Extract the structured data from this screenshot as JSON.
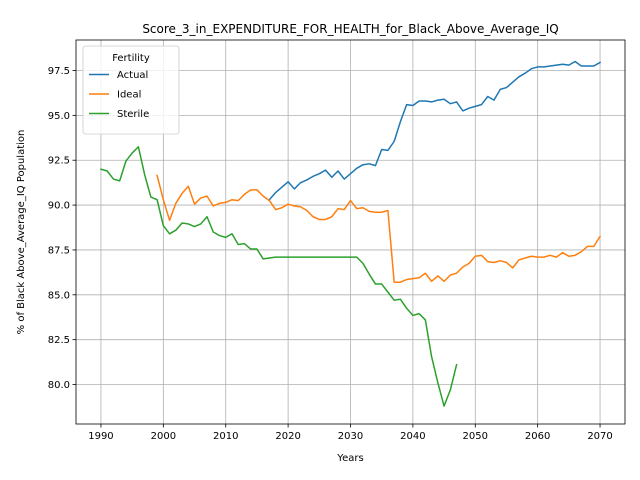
{
  "chart_data": {
    "type": "line",
    "title": "Score_3_in_EXPENDITURE_FOR_HEALTH_for_Black_Above_Average_IQ",
    "xlabel": "Years",
    "ylabel": "% of Black Above_Average_IQ Population",
    "xlim": [
      1986,
      2074
    ],
    "ylim": [
      77.8,
      99.2
    ],
    "xticks": [
      1990,
      2000,
      2010,
      2020,
      2030,
      2040,
      2050,
      2060,
      2070
    ],
    "yticks": [
      80.0,
      82.5,
      85.0,
      87.5,
      90.0,
      92.5,
      95.0,
      97.5
    ],
    "xtick_labels": [
      "1990",
      "2000",
      "2010",
      "2020",
      "2030",
      "2040",
      "2050",
      "2060",
      "2070"
    ],
    "ytick_labels": [
      "80.0",
      "82.5",
      "85.0",
      "87.5",
      "90.0",
      "92.5",
      "95.0",
      "97.5"
    ],
    "grid": true,
    "legend": {
      "title": "Fertility",
      "position": "upper-left"
    },
    "series": [
      {
        "name": "Actual",
        "color": "#1f77b4",
        "x": [
          2017,
          2018,
          2019,
          2020,
          2021,
          2022,
          2023,
          2024,
          2025,
          2026,
          2027,
          2028,
          2029,
          2030,
          2031,
          2032,
          2033,
          2034,
          2035,
          2036,
          2037,
          2038,
          2039,
          2040,
          2041,
          2042,
          2043,
          2044,
          2045,
          2046,
          2047,
          2048,
          2049,
          2050,
          2051,
          2052,
          2053,
          2054,
          2055,
          2056,
          2057,
          2058,
          2059,
          2060,
          2061,
          2062,
          2063,
          2064,
          2065,
          2066,
          2067,
          2068,
          2069,
          2070
        ],
        "y": [
          90.3,
          90.7,
          91.0,
          91.3,
          90.9,
          91.25,
          91.4,
          91.6,
          91.75,
          91.95,
          91.55,
          91.9,
          91.45,
          91.75,
          92.05,
          92.25,
          92.3,
          92.2,
          93.1,
          93.05,
          93.55,
          94.65,
          95.6,
          95.55,
          95.8,
          95.8,
          95.75,
          95.85,
          95.9,
          95.65,
          95.75,
          95.25,
          95.4,
          95.5,
          95.6,
          96.05,
          95.85,
          96.45,
          96.55,
          96.85,
          97.15,
          97.35,
          97.6,
          97.7,
          97.7,
          97.75,
          97.8,
          97.85,
          97.8,
          98.0,
          97.75,
          97.75,
          97.75,
          97.95
        ]
      },
      {
        "name": "Ideal",
        "color": "#ff7f0e",
        "x": [
          1999,
          2000,
          2001,
          2002,
          2003,
          2004,
          2005,
          2006,
          2007,
          2008,
          2009,
          2010,
          2011,
          2012,
          2013,
          2014,
          2015,
          2016,
          2017,
          2018,
          2019,
          2020,
          2021,
          2022,
          2023,
          2024,
          2025,
          2026,
          2027,
          2028,
          2029,
          2030,
          2031,
          2032,
          2033,
          2034,
          2035,
          2036,
          2037,
          2038,
          2039,
          2040,
          2041,
          2042,
          2043,
          2044,
          2045,
          2046,
          2047,
          2048,
          2049,
          2050,
          2051,
          2052,
          2053,
          2054,
          2055,
          2056,
          2057,
          2058,
          2059,
          2060,
          2061,
          2062,
          2063,
          2064,
          2065,
          2066,
          2067,
          2068,
          2069,
          2070
        ],
        "y": [
          91.65,
          90.3,
          89.15,
          90.1,
          90.65,
          91.05,
          90.05,
          90.4,
          90.5,
          89.95,
          90.1,
          90.15,
          90.3,
          90.25,
          90.6,
          90.85,
          90.85,
          90.5,
          90.25,
          89.75,
          89.85,
          90.05,
          89.95,
          89.9,
          89.7,
          89.35,
          89.2,
          89.2,
          89.35,
          89.8,
          89.75,
          90.25,
          89.8,
          89.85,
          89.65,
          89.6,
          89.6,
          89.7,
          85.7,
          85.7,
          85.85,
          85.9,
          85.95,
          86.2,
          85.75,
          86.05,
          85.75,
          86.1,
          86.2,
          86.55,
          86.75,
          87.15,
          87.2,
          86.85,
          86.8,
          86.9,
          86.8,
          86.5,
          86.95,
          87.05,
          87.15,
          87.1,
          87.1,
          87.2,
          87.1,
          87.35,
          87.15,
          87.2,
          87.4,
          87.7,
          87.7,
          88.25
        ]
      },
      {
        "name": "Sterile",
        "color": "#2ca02c",
        "x": [
          1990,
          1991,
          1992,
          1993,
          1994,
          1995,
          1996,
          1997,
          1998,
          1999,
          2000,
          2001,
          2002,
          2003,
          2004,
          2005,
          2006,
          2007,
          2008,
          2009,
          2010,
          2011,
          2012,
          2013,
          2014,
          2015,
          2016,
          2017,
          2018,
          2019,
          2020,
          2021,
          2022,
          2023,
          2024,
          2025,
          2026,
          2027,
          2028,
          2029,
          2030,
          2031,
          2032,
          2033,
          2034,
          2035,
          2036,
          2037,
          2038,
          2039,
          2040,
          2041,
          2042,
          2043,
          2044,
          2045,
          2046,
          2047
        ],
        "y": [
          92.0,
          91.9,
          91.45,
          91.35,
          92.45,
          92.9,
          93.25,
          91.7,
          90.45,
          90.3,
          88.85,
          88.4,
          88.6,
          89.0,
          88.95,
          88.8,
          88.95,
          89.35,
          88.5,
          88.3,
          88.2,
          88.4,
          87.8,
          87.85,
          87.55,
          87.55,
          87.0,
          87.05,
          87.1,
          87.1,
          87.1,
          87.1,
          87.1,
          87.1,
          87.1,
          87.1,
          87.1,
          87.1,
          87.1,
          87.1,
          87.1,
          87.1,
          86.75,
          86.15,
          85.6,
          85.6,
          85.15,
          84.7,
          84.75,
          84.25,
          83.85,
          83.95,
          83.6,
          81.55,
          80.1,
          78.8,
          79.7,
          81.1
        ]
      }
    ]
  }
}
